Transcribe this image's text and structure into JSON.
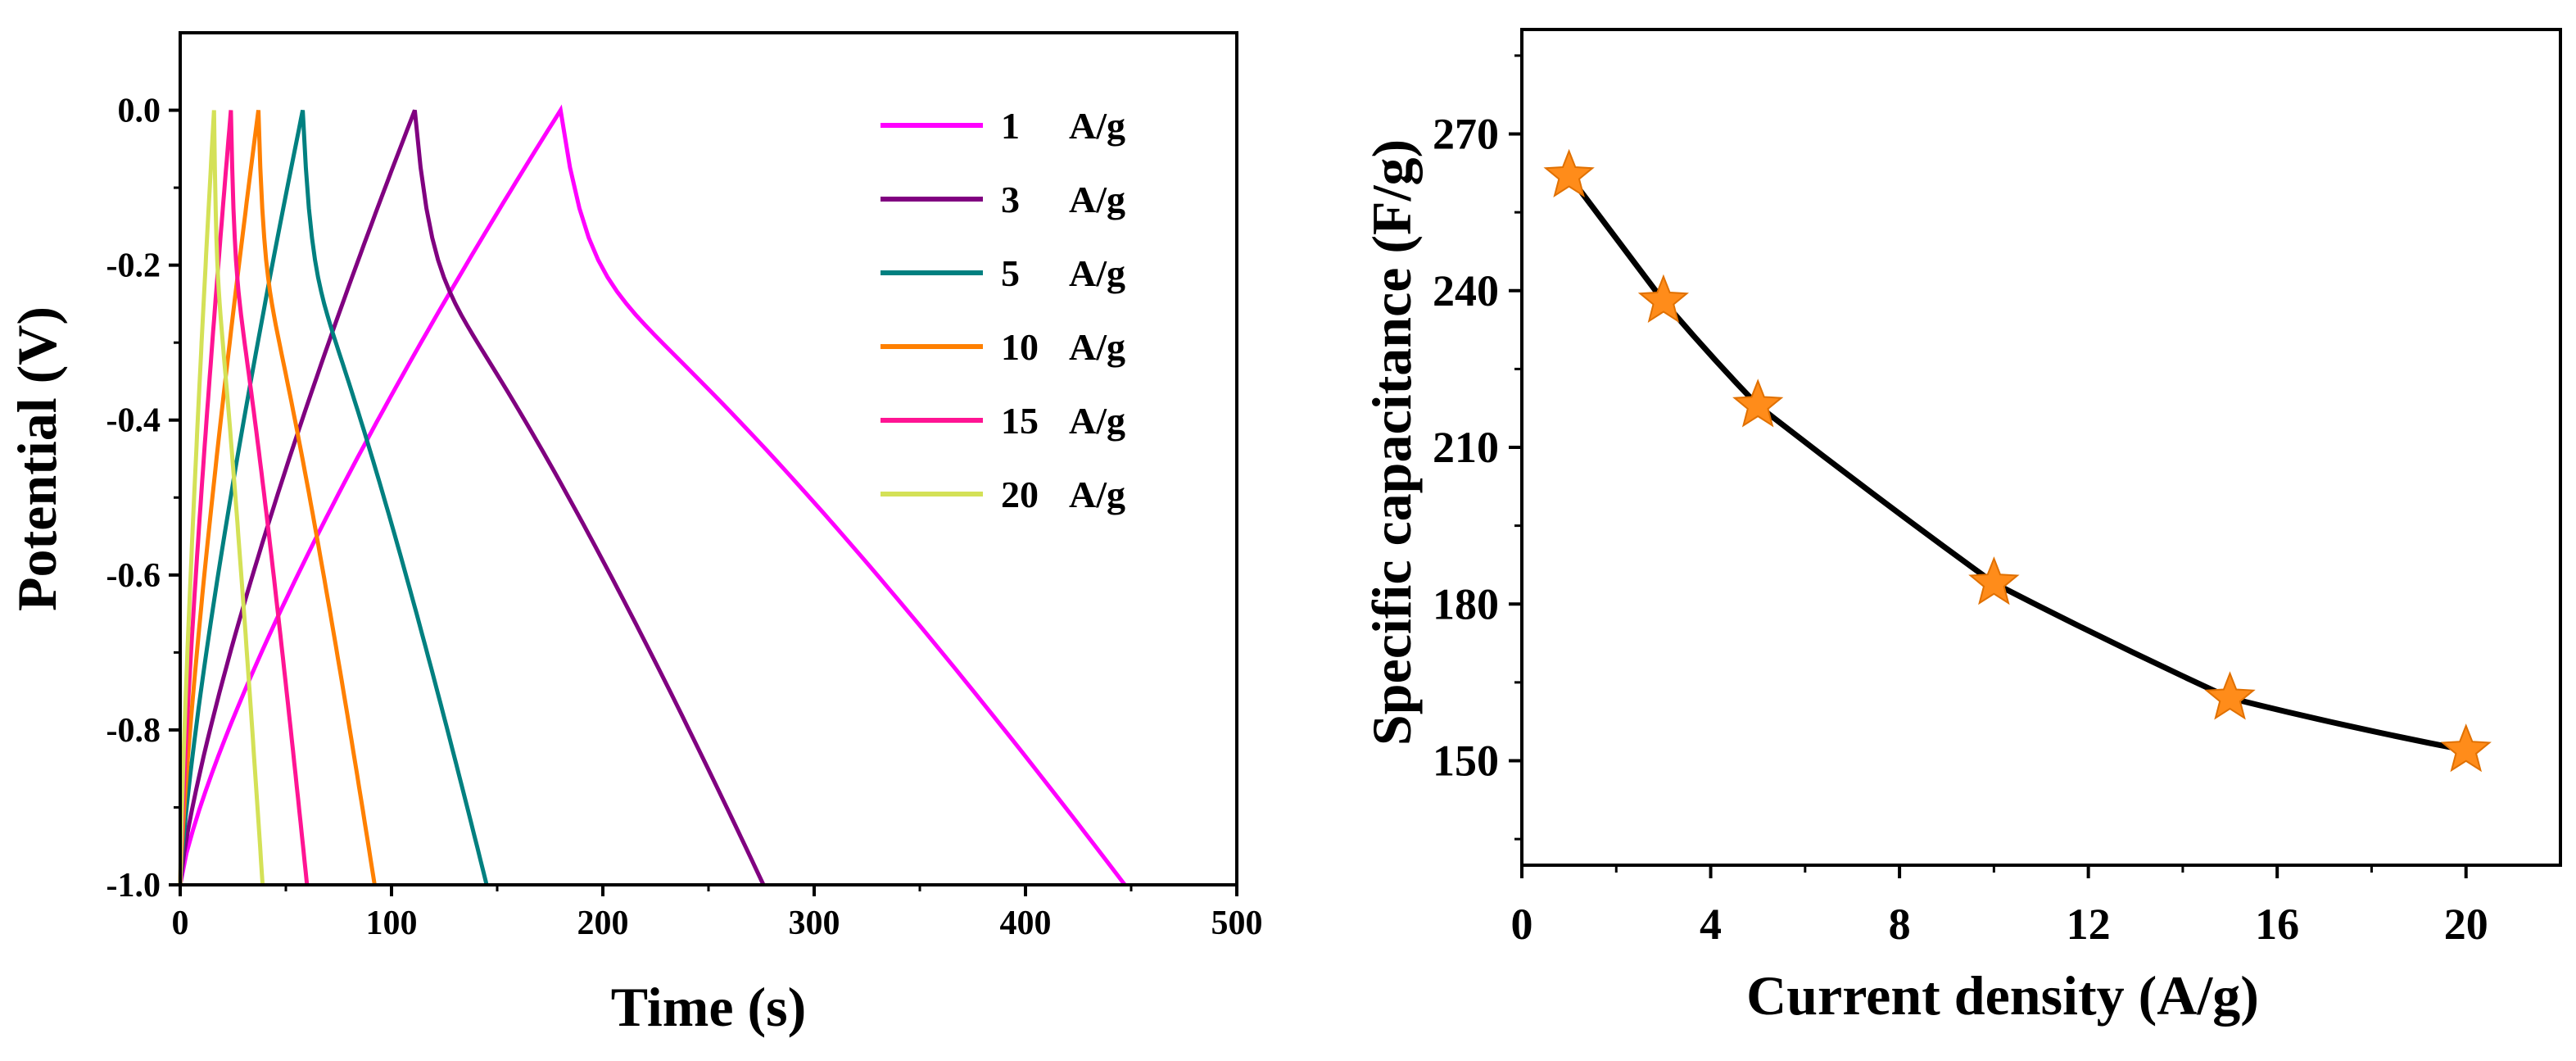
{
  "chart_data": [
    {
      "type": "line",
      "title": "",
      "xlabel": "Time (s)",
      "ylabel": "Potential (V)",
      "xlim": [
        0,
        500
      ],
      "ylim": [
        -1.0,
        0.1
      ],
      "xticks": [
        0,
        100,
        200,
        300,
        400,
        500
      ],
      "yticks": [
        0.0,
        -0.2,
        -0.4,
        -0.6,
        -0.8,
        -1.0
      ],
      "xtick_labels": [
        "0",
        "100",
        "200",
        "300",
        "400",
        "500"
      ],
      "ytick_labels": [
        "0.0",
        "-0.2",
        "-0.4",
        "-0.6",
        "-0.8",
        "-1.0"
      ],
      "legend_position": "top-right",
      "series": [
        {
          "name": "1",
          "unit": "A/g",
          "color": "#ff00ff",
          "peak_time": 180,
          "end_time": 447
        },
        {
          "name": "3",
          "unit": "A/g",
          "color": "#800080",
          "peak_time": 111,
          "end_time": 276
        },
        {
          "name": "5",
          "unit": "A/g",
          "color": "#008080",
          "peak_time": 58,
          "end_time": 145
        },
        {
          "name": "10",
          "unit": "A/g",
          "color": "#ff8000",
          "peak_time": 37,
          "end_time": 92
        },
        {
          "name": "15",
          "unit": "A/g",
          "color": "#ff1493",
          "peak_time": 24,
          "end_time": 60
        },
        {
          "name": "20",
          "unit": "A/g",
          "color": "#d4e157",
          "peak_time": 16,
          "end_time": 39
        }
      ]
    },
    {
      "type": "scatter",
      "title": "",
      "xlabel": "Current density (A/g)",
      "ylabel": "Specific capacitance (F/g)",
      "xlim": [
        0,
        22
      ],
      "ylim": [
        130,
        290
      ],
      "xticks": [
        0,
        4,
        8,
        12,
        16,
        20
      ],
      "yticks": [
        150,
        180,
        210,
        240,
        270
      ],
      "xtick_labels": [
        "0",
        "4",
        "8",
        "12",
        "16",
        "20"
      ],
      "ytick_labels": [
        "150",
        "180",
        "210",
        "240",
        "270"
      ],
      "x": [
        1,
        3,
        5,
        10,
        15,
        20
      ],
      "y": [
        262,
        238,
        218,
        184,
        162,
        152
      ],
      "marker": "star",
      "marker_color": "#ff8c1a",
      "line_color": "#000000"
    }
  ]
}
